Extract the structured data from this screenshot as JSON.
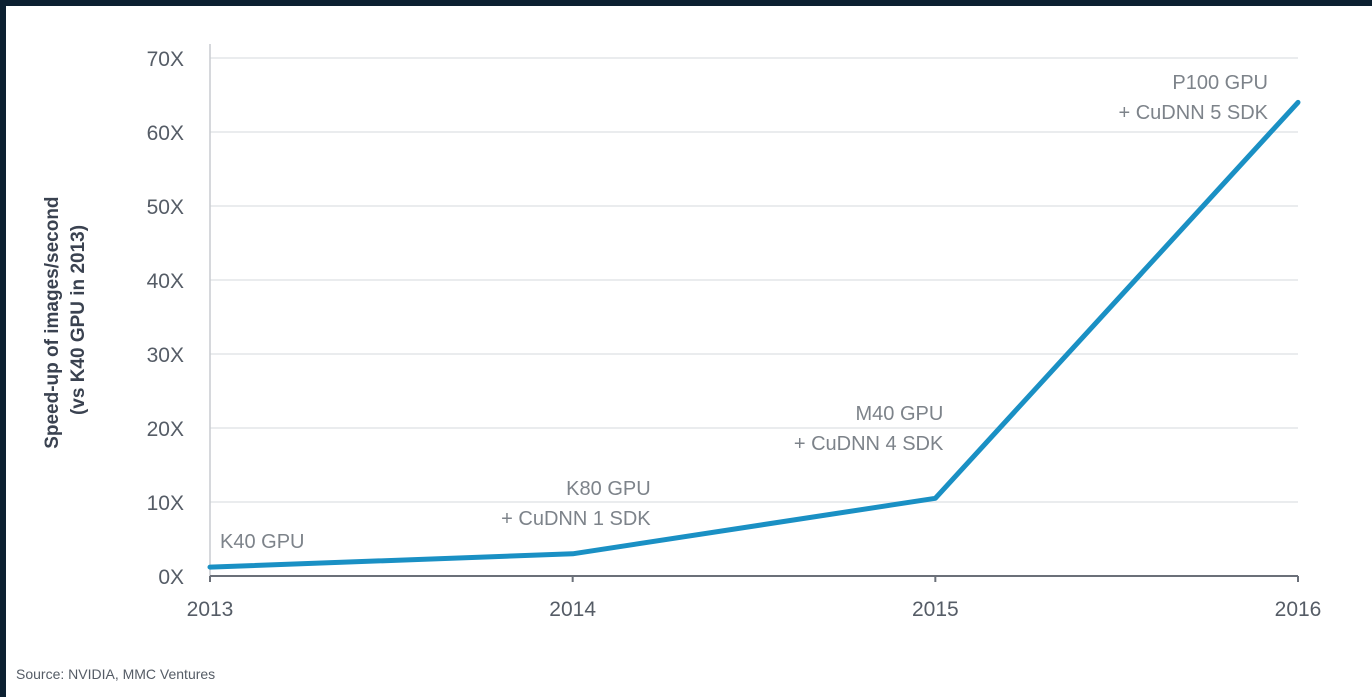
{
  "chart_data": {
    "type": "line",
    "x": [
      2013,
      2014,
      2015,
      2016
    ],
    "series": [
      {
        "values": [
          1.2,
          3,
          10.5,
          64
        ]
      }
    ],
    "point_labels": [
      [
        "K40 GPU"
      ],
      [
        "K80 GPU",
        "+ CuDNN 1 SDK"
      ],
      [
        "M40 GPU",
        "+ CuDNN 4 SDK"
      ],
      [
        "P100 GPU",
        "+ CuDNN 5 SDK"
      ]
    ],
    "ylabel_lines": [
      "Speed-up of images/second",
      "(vs K40 GPU in 2013)"
    ],
    "xticks": [
      "2013",
      "2014",
      "2015",
      "2016"
    ],
    "yticks": [
      "0X",
      "10X",
      "20X",
      "30X",
      "40X",
      "50X",
      "60X",
      "70X"
    ],
    "ylim": [
      0,
      70
    ],
    "grid": true,
    "line_color": "#1a90c4",
    "grid_color": "#e3e5e8"
  },
  "source": "Source: NVIDIA, MMC Ventures"
}
